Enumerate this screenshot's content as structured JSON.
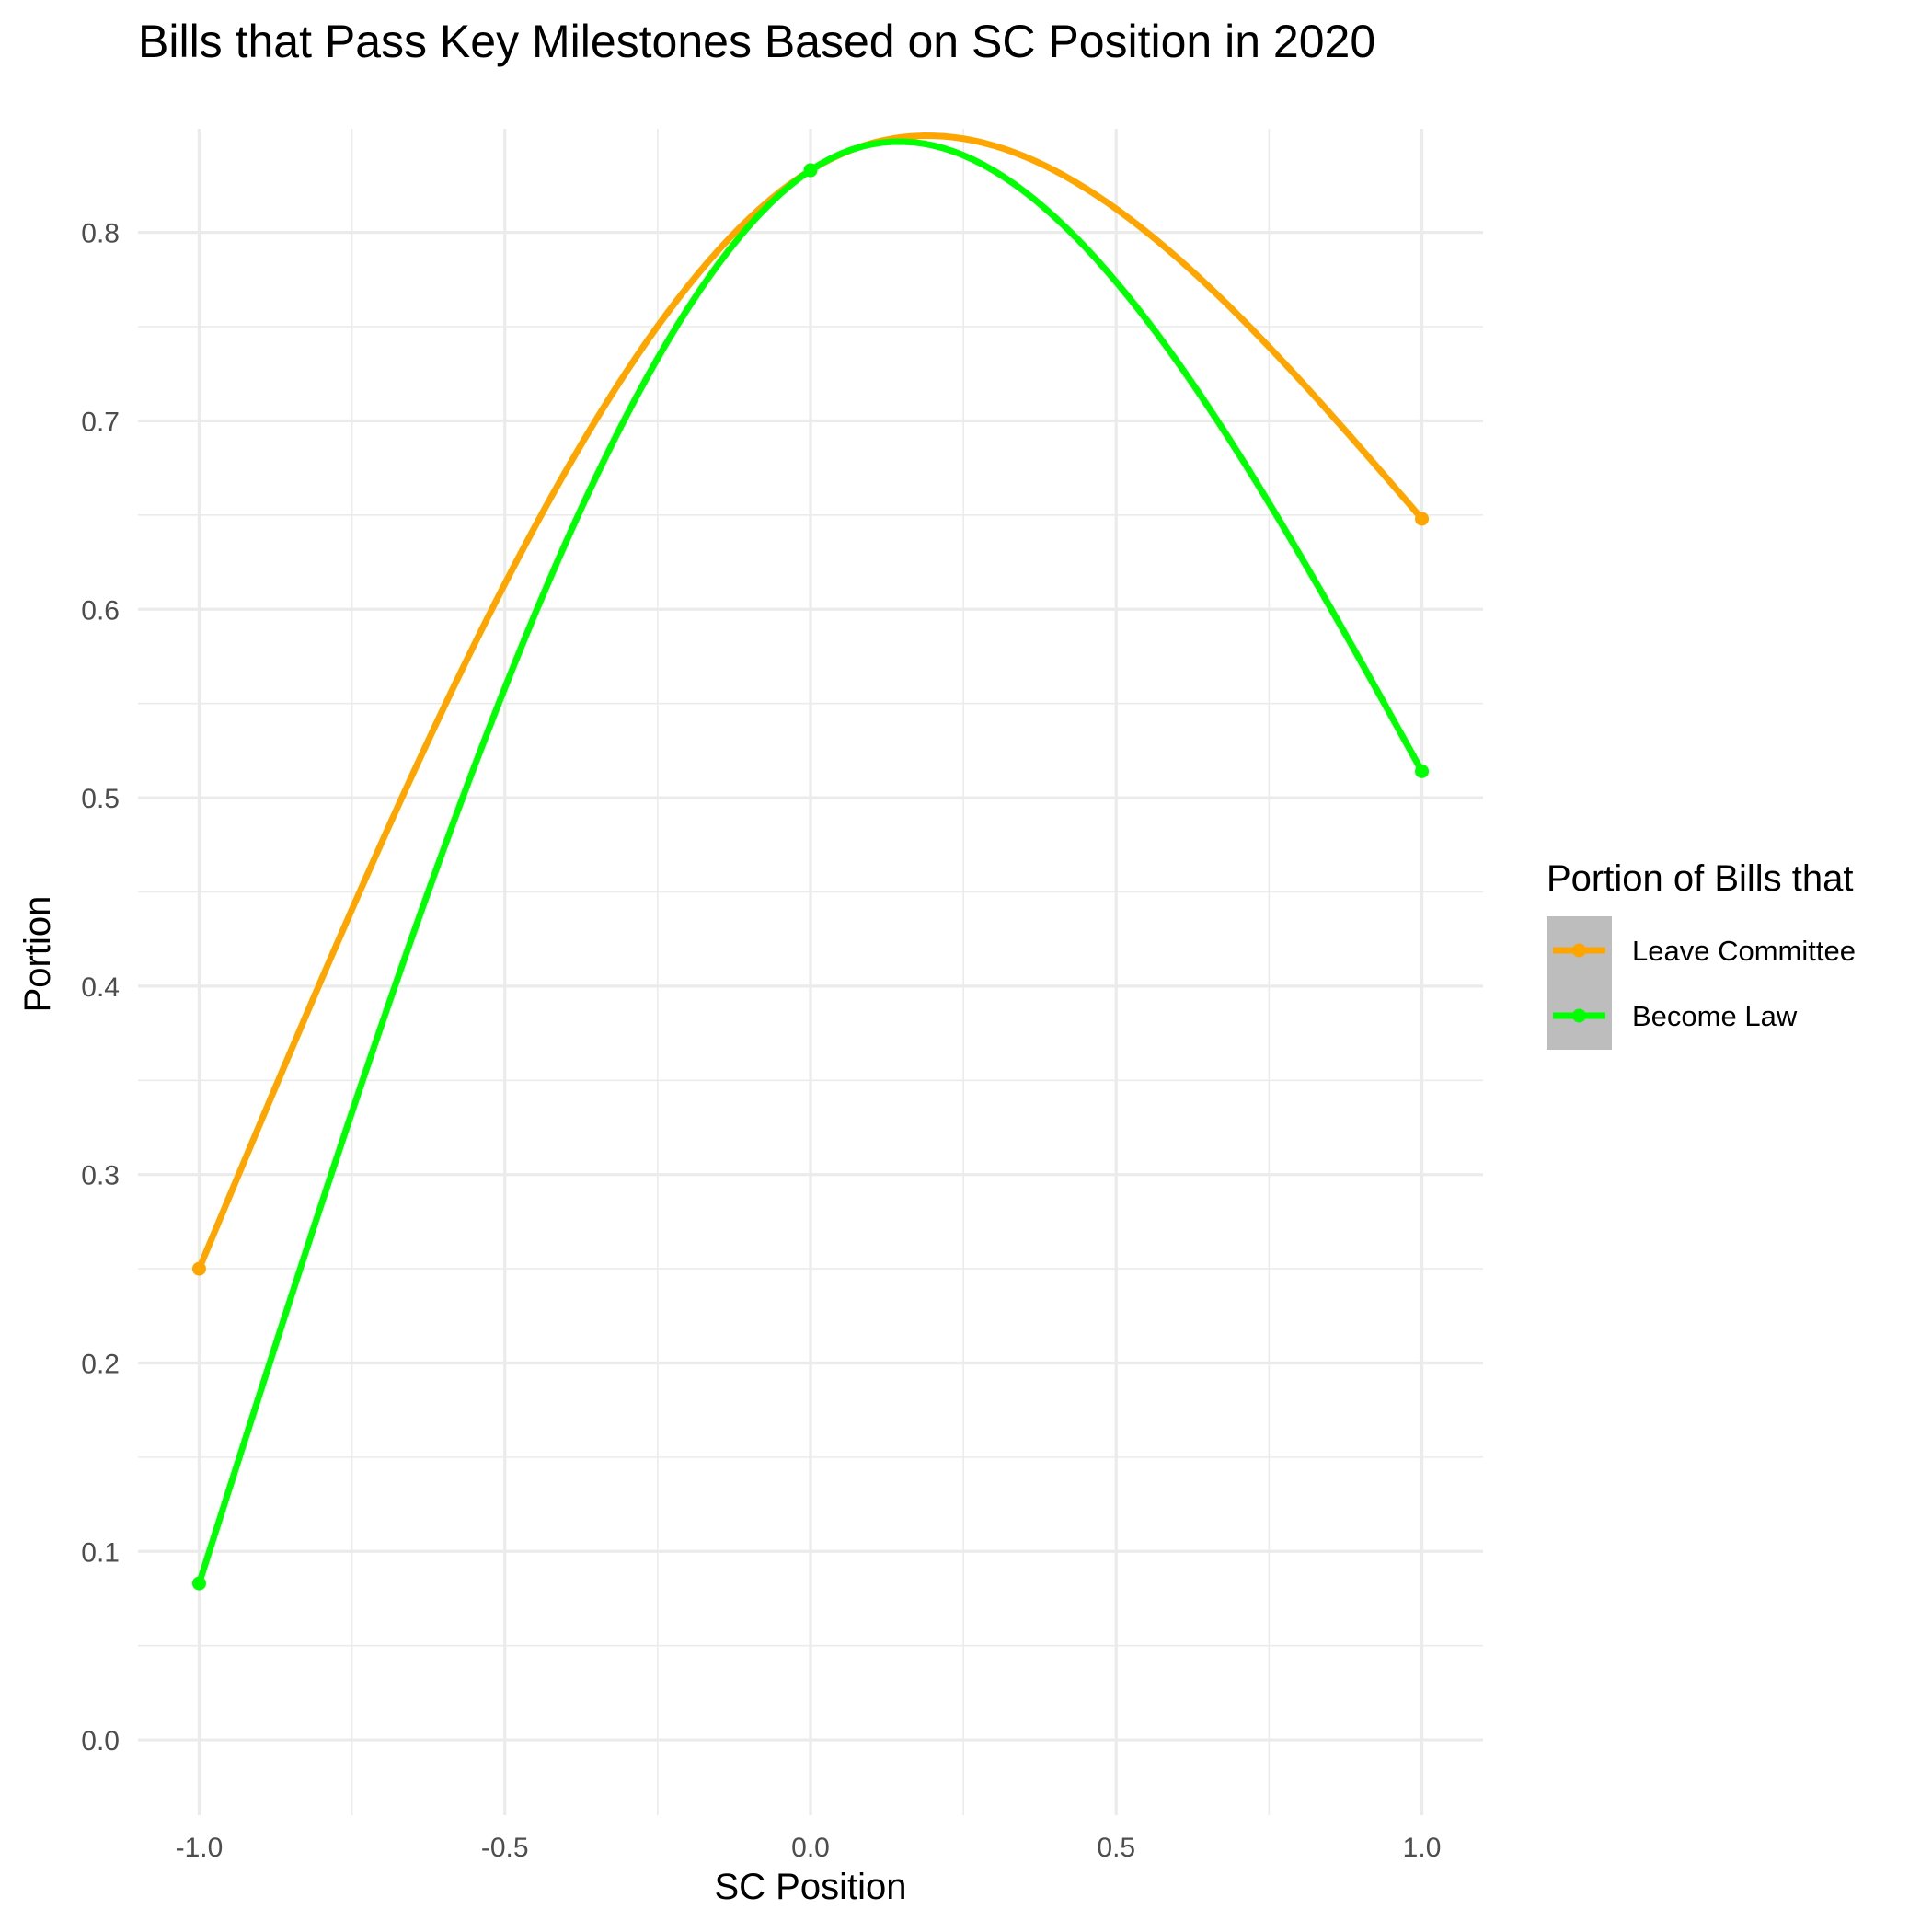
{
  "chart_data": {
    "type": "line",
    "title": "Bills that Pass Key Milestones Based on SC Position in 2020",
    "xlabel": "SC Position",
    "ylabel": "Portion",
    "xlim": [
      -1.1,
      1.1
    ],
    "ylim": [
      -0.04,
      0.855
    ],
    "x_ticks": [
      -1.0,
      -0.5,
      0.0,
      0.5,
      1.0
    ],
    "x_tick_labels": [
      "-1.0",
      "-0.5",
      "0.0",
      "0.5",
      "1.0"
    ],
    "x_minor_ticks": [
      -0.75,
      -0.25,
      0.25,
      0.75
    ],
    "y_ticks": [
      0.0,
      0.1,
      0.2,
      0.3,
      0.4,
      0.5,
      0.6,
      0.7,
      0.8
    ],
    "y_tick_labels": [
      "0.0",
      "0.1",
      "0.2",
      "0.3",
      "0.4",
      "0.5",
      "0.6",
      "0.7",
      "0.8"
    ],
    "y_minor_ticks": [
      0.05,
      0.15,
      0.25,
      0.35,
      0.45,
      0.55,
      0.65,
      0.75
    ],
    "grid": true,
    "smoothed": true,
    "legend": {
      "title": "Portion of Bills that",
      "position": "right"
    },
    "series": [
      {
        "name": "Leave Committee",
        "color": "#FFA500",
        "x": [
          -1.0,
          0.0,
          1.0
        ],
        "values": [
          0.25,
          0.833,
          0.648
        ]
      },
      {
        "name": "Become Law",
        "color": "#00FF00",
        "x": [
          -1.0,
          0.0,
          1.0
        ],
        "values": [
          0.083,
          0.833,
          0.514
        ]
      }
    ]
  }
}
